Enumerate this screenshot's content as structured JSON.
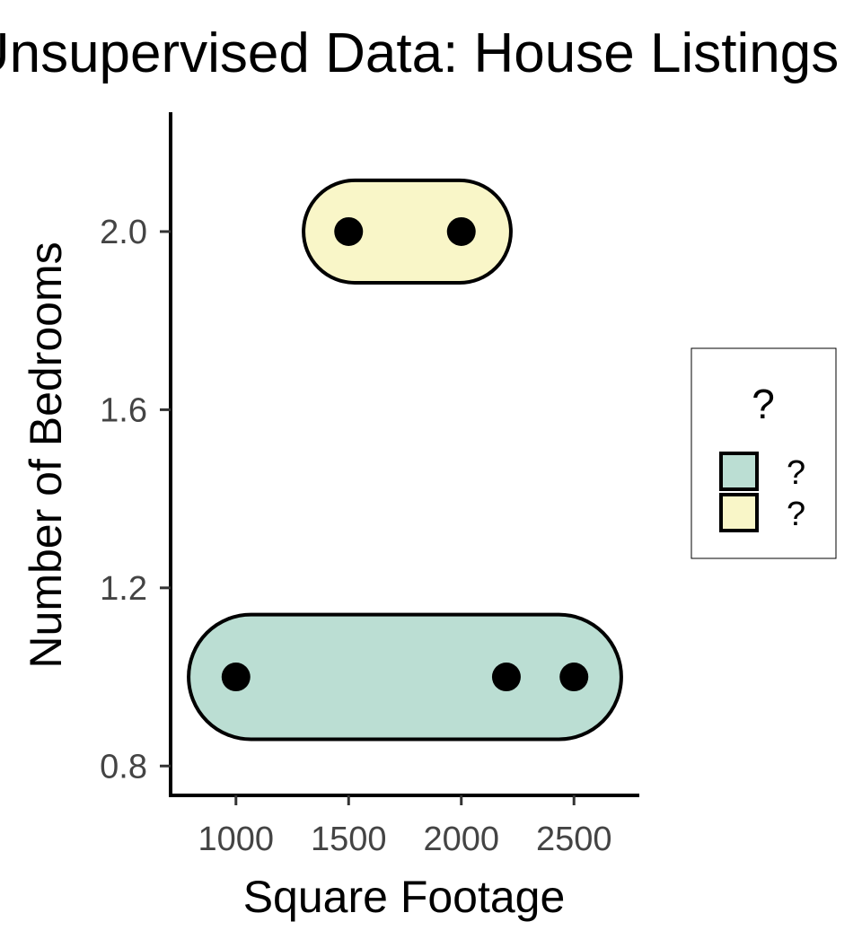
{
  "chart_data": {
    "type": "scatter",
    "title": "Unsupervised Data: House Listings",
    "xlabel": "Square Footage",
    "ylabel": "Number of Bedrooms",
    "xlim": [
      710,
      2790
    ],
    "ylim": [
      0.734,
      2.268
    ],
    "xticks": [
      1000,
      1500,
      2000,
      2500
    ],
    "yticks": [
      0.8,
      1.2,
      1.6,
      2.0
    ],
    "ytick_labels": [
      "0.8",
      "1.2",
      "1.6",
      "2.0"
    ],
    "grid": false,
    "points": [
      {
        "x": 1000,
        "y": 1.0
      },
      {
        "x": 2200,
        "y": 1.0
      },
      {
        "x": 2500,
        "y": 1.0
      },
      {
        "x": 1500,
        "y": 2.0
      },
      {
        "x": 2000,
        "y": 2.0
      }
    ],
    "clusters": [
      {
        "label": "?",
        "color": "#bbded3",
        "x_range": [
          790,
          2710
        ],
        "y_range": [
          0.86,
          1.14
        ]
      },
      {
        "label": "?",
        "color": "#f9f6c8",
        "x_range": [
          1300,
          2220
        ],
        "y_range": [
          1.885,
          2.115
        ]
      }
    ],
    "legend": {
      "title": "?",
      "position": "right",
      "entries": [
        {
          "label": "?",
          "color": "#bbded3"
        },
        {
          "label": "?",
          "color": "#f9f6c8"
        }
      ]
    }
  }
}
